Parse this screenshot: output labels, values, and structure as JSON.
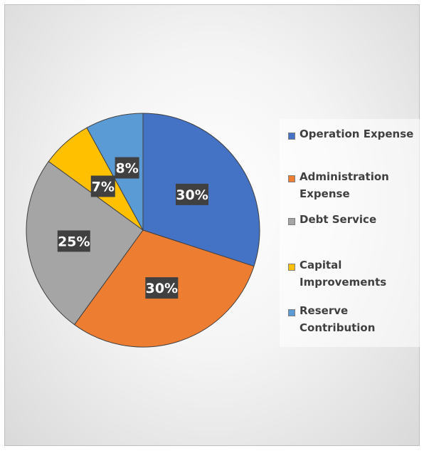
{
  "chart_data": {
    "type": "pie",
    "title": "",
    "slices": [
      {
        "name": "Operation Expense",
        "value": 30,
        "label": "30%",
        "color": "#4472c4"
      },
      {
        "name": "Administration Expense",
        "value": 30,
        "label": "30%",
        "color": "#ed7d31"
      },
      {
        "name": "Debt Service",
        "value": 25,
        "label": "25%",
        "color": "#a5a5a5"
      },
      {
        "name": "Capital Improvements",
        "value": 7,
        "label": "7%",
        "color": "#ffc000"
      },
      {
        "name": "Reserve Contribution",
        "value": 8,
        "label": "8%",
        "color": "#5b9bd5"
      }
    ],
    "start_angle": "12 o'clock",
    "direction": "clockwise",
    "legend_position": "right"
  }
}
